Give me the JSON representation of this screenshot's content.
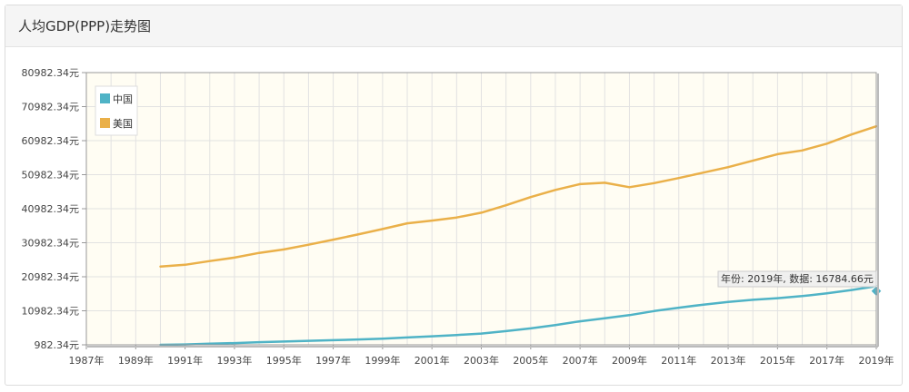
{
  "panel": {
    "title": "人均GDP(PPP)走势图"
  },
  "chart_data": {
    "type": "line",
    "title": "人均GDP(PPP)走势图",
    "xlabel": "",
    "ylabel": "",
    "xlim": [
      1987,
      2019
    ],
    "ylim": [
      982.34,
      80982.34
    ],
    "x_ticks": [
      "1987年",
      "1989年",
      "1991年",
      "1993年",
      "1995年",
      "1997年",
      "1999年",
      "2001年",
      "2003年",
      "2005年",
      "2007年",
      "2009年",
      "2011年",
      "2013年",
      "2015年",
      "2017年",
      "2019年"
    ],
    "y_ticks": [
      "982.34元",
      "10982.34元",
      "20982.34元",
      "30982.34元",
      "40982.34元",
      "50982.34元",
      "60982.34元",
      "70982.34元",
      "80982.34元"
    ],
    "grid": true,
    "legend_position": "top-left",
    "series": [
      {
        "name": "中国",
        "color": "#4fb3c6",
        "x": [
          1990,
          1991,
          1992,
          1993,
          1994,
          1995,
          1996,
          1997,
          1998,
          1999,
          2000,
          2001,
          2002,
          2003,
          2004,
          2005,
          2006,
          2007,
          2008,
          2009,
          2010,
          2011,
          2012,
          2013,
          2014,
          2015,
          2016,
          2017,
          2018,
          2019
        ],
        "y": [
          983,
          1100,
          1300,
          1500,
          1750,
          1950,
          2150,
          2350,
          2550,
          2800,
          3150,
          3500,
          3850,
          4300,
          5000,
          5800,
          6800,
          7900,
          8800,
          9700,
          10900,
          11900,
          12800,
          13600,
          14200,
          14700,
          15300,
          16100,
          17100,
          18200
        ]
      },
      {
        "name": "美国",
        "color": "#eab049",
        "x": [
          1990,
          1991,
          1992,
          1993,
          1994,
          1995,
          1996,
          1997,
          1998,
          1999,
          2000,
          2001,
          2002,
          2003,
          2004,
          2005,
          2006,
          2007,
          2008,
          2009,
          2010,
          2011,
          2012,
          2013,
          2014,
          2015,
          2016,
          2017,
          2018,
          2019
        ],
        "y": [
          24000,
          24500,
          25600,
          26600,
          28000,
          29000,
          30400,
          31900,
          33400,
          35000,
          36700,
          37500,
          38400,
          39800,
          42000,
          44400,
          46500,
          48200,
          48600,
          47300,
          48500,
          50000,
          51600,
          53200,
          55100,
          57000,
          58100,
          60100,
          62800,
          65200
        ]
      }
    ],
    "tooltip": {
      "label": "年份: 2019年, 数据: 16784.66元",
      "x": 2019,
      "y": 16784.66
    }
  }
}
